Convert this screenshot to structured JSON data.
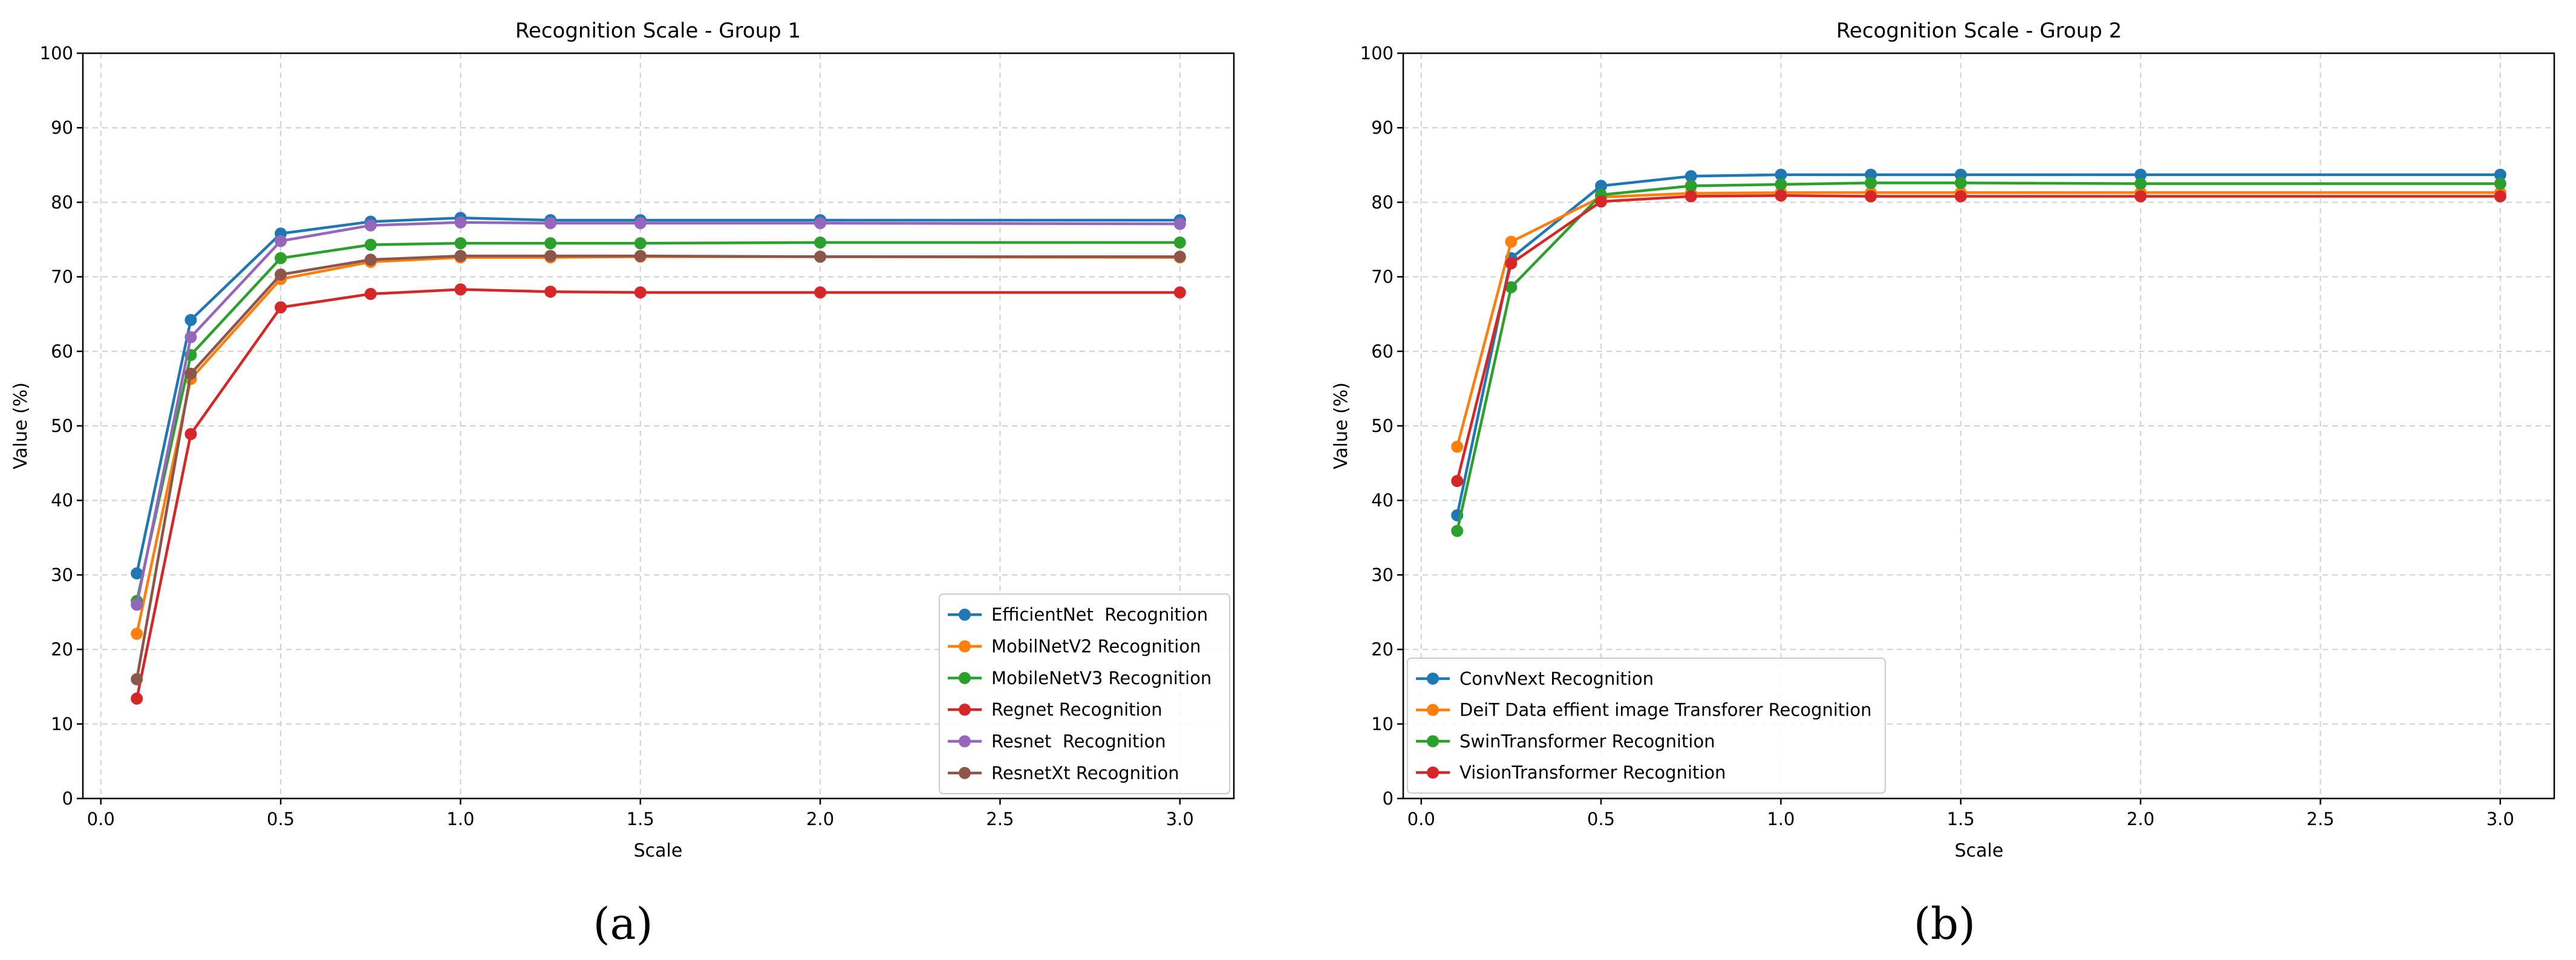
{
  "chart_data": [
    {
      "type": "line",
      "title": "Recognition Scale - Group 1",
      "xlabel": "Scale",
      "ylabel": "Value (%)",
      "xlim": [
        -0.05,
        3.15
      ],
      "ylim": [
        0,
        100
      ],
      "xticks": [
        "0.0",
        "0.5",
        "1.0",
        "1.5",
        "2.0",
        "2.5",
        "3.0"
      ],
      "yticks": [
        "0",
        "10",
        "20",
        "30",
        "40",
        "50",
        "60",
        "70",
        "80",
        "90",
        "100"
      ],
      "grid": true,
      "legend_position": "bottom-right",
      "caption": "(a)",
      "x": [
        0.1,
        0.25,
        0.5,
        0.75,
        1.0,
        1.25,
        1.5,
        2.0,
        3.0
      ],
      "series": [
        {
          "name": "EfficientNet  Recognition",
          "color": "#1f77b4",
          "values": [
            30.2,
            64.2,
            75.8,
            77.4,
            77.9,
            77.6,
            77.6,
            77.6,
            77.6
          ]
        },
        {
          "name": "MobilNetV2 Recognition",
          "color": "#ff7f0e",
          "values": [
            22.1,
            56.3,
            69.7,
            72.0,
            72.6,
            72.6,
            72.7,
            72.7,
            72.6
          ]
        },
        {
          "name": "MobileNetV3 Recognition",
          "color": "#2ca02c",
          "values": [
            26.5,
            59.5,
            72.5,
            74.3,
            74.5,
            74.5,
            74.5,
            74.6,
            74.6
          ]
        },
        {
          "name": "Regnet Recognition",
          "color": "#d62728",
          "values": [
            13.4,
            48.9,
            65.9,
            67.7,
            68.3,
            68.0,
            67.9,
            67.9,
            67.9
          ]
        },
        {
          "name": "Resnet  Recognition",
          "color": "#9467bd",
          "values": [
            26.0,
            61.9,
            74.8,
            76.9,
            77.3,
            77.2,
            77.2,
            77.2,
            77.1
          ]
        },
        {
          "name": "ResnetXt Recognition",
          "color": "#8c564b",
          "values": [
            16.0,
            57.0,
            70.3,
            72.3,
            72.8,
            72.8,
            72.8,
            72.7,
            72.7
          ]
        }
      ]
    },
    {
      "type": "line",
      "title": "Recognition Scale - Group 2",
      "xlabel": "Scale",
      "ylabel": "Value (%)",
      "xlim": [
        -0.05,
        3.15
      ],
      "ylim": [
        0,
        100
      ],
      "xticks": [
        "0.0",
        "0.5",
        "1.0",
        "1.5",
        "2.0",
        "2.5",
        "3.0"
      ],
      "yticks": [
        "0",
        "10",
        "20",
        "30",
        "40",
        "50",
        "60",
        "70",
        "80",
        "90",
        "100"
      ],
      "grid": true,
      "legend_position": "bottom-left",
      "caption": "(b)",
      "x": [
        0.1,
        0.25,
        0.5,
        0.75,
        1.0,
        1.25,
        1.5,
        2.0,
        3.0
      ],
      "series": [
        {
          "name": "ConvNext Recognition",
          "color": "#1f77b4",
          "values": [
            38.0,
            72.5,
            82.2,
            83.5,
            83.7,
            83.7,
            83.7,
            83.7,
            83.7
          ]
        },
        {
          "name": "DeiT Data effient image Transforer Recognition",
          "color": "#ff7f0e",
          "values": [
            47.2,
            74.7,
            80.7,
            81.2,
            81.3,
            81.3,
            81.3,
            81.3,
            81.3
          ]
        },
        {
          "name": "SwinTransformer Recognition",
          "color": "#2ca02c",
          "values": [
            35.9,
            68.6,
            81.0,
            82.2,
            82.4,
            82.6,
            82.6,
            82.5,
            82.5
          ]
        },
        {
          "name": "VisionTransformer Recognition",
          "color": "#d62728",
          "values": [
            42.6,
            71.8,
            80.1,
            80.8,
            80.9,
            80.8,
            80.8,
            80.8,
            80.8
          ]
        }
      ]
    }
  ]
}
